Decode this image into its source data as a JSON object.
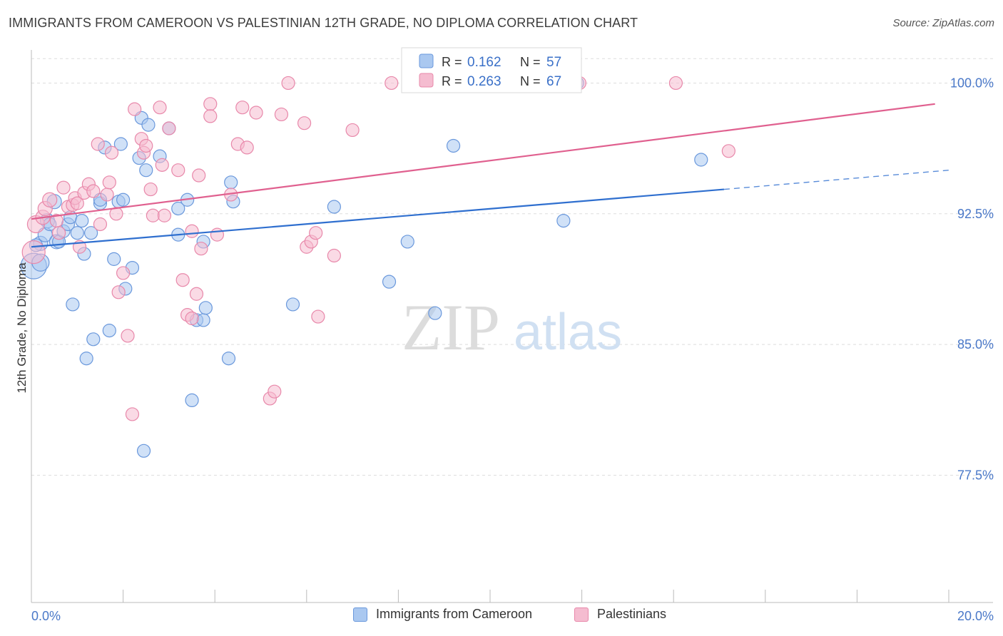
{
  "title": "IMMIGRANTS FROM CAMEROON VS PALESTINIAN 12TH GRADE, NO DIPLOMA CORRELATION CHART",
  "source": "Source: ZipAtlas.com",
  "watermark": {
    "zip": "ZIP",
    "atlas": "atlas"
  },
  "legend": {
    "r_label": "R =",
    "n_label": "N =",
    "series": [
      {
        "name": "Immigrants from Cameroon",
        "r": "0.162",
        "n": "57"
      },
      {
        "name": "Palestinians",
        "r": "0.263",
        "n": "67"
      }
    ]
  },
  "colors": {
    "blue_fill": "#aac8f0",
    "blue_stroke": "#6a98dc",
    "blue_line": "#2f6fcf",
    "pink_fill": "#f5bcd0",
    "pink_stroke": "#e888aa",
    "pink_line": "#e0608f",
    "axis_value": "#4a78c8",
    "grid": "#dddddd"
  },
  "chart_data": {
    "type": "scatter",
    "title": "IMMIGRANTS FROM CAMEROON VS PALESTINIAN 12TH GRADE, NO DIPLOMA CORRELATION CHART",
    "xlabel": "",
    "ylabel": "12th Grade, No Diploma",
    "xlim": [
      0,
      20
    ],
    "ylim": [
      70.2,
      101.9
    ],
    "x_tick_labels": [
      "0.0%",
      "20.0%"
    ],
    "y_ticks": [
      77.5,
      85.0,
      92.5,
      100.0
    ],
    "y_tick_labels": [
      "77.5%",
      "85.0%",
      "92.5%",
      "100.0%"
    ],
    "grid": true,
    "legend_position": "top-center",
    "series": [
      {
        "name": "Immigrants from Cameroon",
        "color": "blue",
        "trend": {
          "x0": 0,
          "y0": 90.6,
          "x1": 15.1,
          "y1": 93.9,
          "dash_x1": 20,
          "dash_y1": 95.0
        },
        "points": [
          [
            0.05,
            89.5,
            18
          ],
          [
            0.2,
            89.7,
            12
          ],
          [
            0.2,
            90.8,
            10
          ],
          [
            0.3,
            91.3,
            10
          ],
          [
            0.35,
            92.1,
            10
          ],
          [
            0.4,
            91.9,
            9
          ],
          [
            0.5,
            93.2,
            10
          ],
          [
            0.55,
            90.9,
            10
          ],
          [
            0.6,
            90.9,
            9
          ],
          [
            0.7,
            91.5,
            9
          ],
          [
            0.8,
            91.9,
            9
          ],
          [
            0.85,
            92.3,
            9
          ],
          [
            0.9,
            87.3,
            9
          ],
          [
            1.0,
            91.4,
            9
          ],
          [
            1.1,
            92.1,
            9
          ],
          [
            1.15,
            90.2,
            9
          ],
          [
            1.3,
            91.4,
            9
          ],
          [
            1.35,
            85.3,
            9
          ],
          [
            1.2,
            84.2,
            9
          ],
          [
            1.5,
            93.1,
            9
          ],
          [
            1.5,
            93.3,
            9
          ],
          [
            1.6,
            96.3,
            9
          ],
          [
            1.7,
            85.8,
            9
          ],
          [
            1.8,
            89.9,
            9
          ],
          [
            1.9,
            93.2,
            9
          ],
          [
            1.95,
            96.5,
            9
          ],
          [
            2.05,
            88.2,
            9
          ],
          [
            2.0,
            93.3,
            9
          ],
          [
            2.2,
            89.4,
            9
          ],
          [
            2.35,
            95.7,
            9
          ],
          [
            2.4,
            98.0,
            9
          ],
          [
            2.5,
            95.0,
            9
          ],
          [
            2.55,
            97.6,
            9
          ],
          [
            2.45,
            78.9,
            9
          ],
          [
            2.8,
            95.8,
            9
          ],
          [
            3.0,
            97.4,
            9
          ],
          [
            3.2,
            91.3,
            9
          ],
          [
            3.2,
            92.8,
            9
          ],
          [
            3.4,
            93.3,
            9
          ],
          [
            3.5,
            81.8,
            9
          ],
          [
            3.6,
            86.4,
            9
          ],
          [
            3.75,
            86.4,
            9
          ],
          [
            3.75,
            90.9,
            9
          ],
          [
            3.8,
            87.1,
            9
          ],
          [
            4.3,
            84.2,
            9
          ],
          [
            4.35,
            94.3,
            9
          ],
          [
            4.4,
            93.2,
            9
          ],
          [
            5.7,
            87.3,
            9
          ],
          [
            6.6,
            92.9,
            9
          ],
          [
            7.8,
            88.6,
            9
          ],
          [
            8.2,
            90.9,
            9
          ],
          [
            8.8,
            86.8,
            9
          ],
          [
            9.2,
            96.4,
            9
          ],
          [
            11.6,
            92.1,
            9
          ],
          [
            11.9,
            100.0,
            9
          ],
          [
            14.6,
            95.6,
            9
          ],
          [
            0.1,
            90.7,
            9
          ]
        ]
      },
      {
        "name": "Palestinians",
        "color": "pink",
        "trend": {
          "x0": 0,
          "y0": 92.2,
          "x1": 19.7,
          "y1": 98.8
        },
        "points": [
          [
            0.05,
            90.3,
            16
          ],
          [
            0.1,
            91.9,
            12
          ],
          [
            0.25,
            92.3,
            10
          ],
          [
            0.3,
            92.8,
            10
          ],
          [
            0.4,
            93.3,
            10
          ],
          [
            0.55,
            92.1,
            9
          ],
          [
            0.6,
            91.4,
            9
          ],
          [
            0.7,
            94.0,
            9
          ],
          [
            0.8,
            92.9,
            9
          ],
          [
            0.9,
            93.0,
            9
          ],
          [
            0.95,
            93.4,
            9
          ],
          [
            1.0,
            93.1,
            9
          ],
          [
            1.05,
            90.6,
            9
          ],
          [
            1.15,
            93.7,
            9
          ],
          [
            1.25,
            94.2,
            9
          ],
          [
            1.35,
            93.8,
            9
          ],
          [
            1.45,
            96.5,
            9
          ],
          [
            1.5,
            91.9,
            9
          ],
          [
            1.65,
            93.6,
            9
          ],
          [
            1.7,
            94.3,
            9
          ],
          [
            1.75,
            96.0,
            9
          ],
          [
            1.85,
            92.5,
            9
          ],
          [
            1.9,
            88.0,
            9
          ],
          [
            2.0,
            89.1,
            9
          ],
          [
            2.1,
            85.5,
            9
          ],
          [
            2.2,
            81.0,
            9
          ],
          [
            2.25,
            98.5,
            9
          ],
          [
            2.4,
            96.8,
            9
          ],
          [
            2.45,
            96.0,
            9
          ],
          [
            2.5,
            96.4,
            9
          ],
          [
            2.6,
            93.9,
            9
          ],
          [
            2.65,
            92.4,
            9
          ],
          [
            2.8,
            98.6,
            9
          ],
          [
            2.85,
            95.3,
            9
          ],
          [
            2.9,
            92.4,
            9
          ],
          [
            3.0,
            97.4,
            9
          ],
          [
            3.2,
            95.0,
            9
          ],
          [
            3.3,
            88.7,
            9
          ],
          [
            3.4,
            86.7,
            9
          ],
          [
            3.5,
            91.5,
            9
          ],
          [
            3.5,
            86.5,
            9
          ],
          [
            3.6,
            87.9,
            9
          ],
          [
            3.65,
            94.7,
            9
          ],
          [
            3.7,
            90.5,
            9
          ],
          [
            3.9,
            98.8,
            9
          ],
          [
            3.9,
            98.1,
            9
          ],
          [
            4.05,
            91.3,
            9
          ],
          [
            4.35,
            93.6,
            9
          ],
          [
            4.5,
            96.5,
            9
          ],
          [
            4.6,
            98.6,
            9
          ],
          [
            4.7,
            96.3,
            9
          ],
          [
            4.9,
            98.3,
            9
          ],
          [
            5.2,
            81.9,
            9
          ],
          [
            5.3,
            82.3,
            9
          ],
          [
            5.45,
            98.2,
            9
          ],
          [
            5.6,
            100.0,
            9
          ],
          [
            5.95,
            97.7,
            9
          ],
          [
            6.0,
            90.6,
            9
          ],
          [
            6.1,
            90.9,
            9
          ],
          [
            6.2,
            91.4,
            9
          ],
          [
            6.25,
            86.6,
            9
          ],
          [
            6.6,
            90.1,
            9
          ],
          [
            7.0,
            97.3,
            9
          ],
          [
            7.85,
            100.0,
            9
          ],
          [
            11.95,
            100.0,
            9
          ],
          [
            14.05,
            100.0,
            9
          ],
          [
            15.2,
            96.1,
            9
          ]
        ]
      }
    ]
  }
}
